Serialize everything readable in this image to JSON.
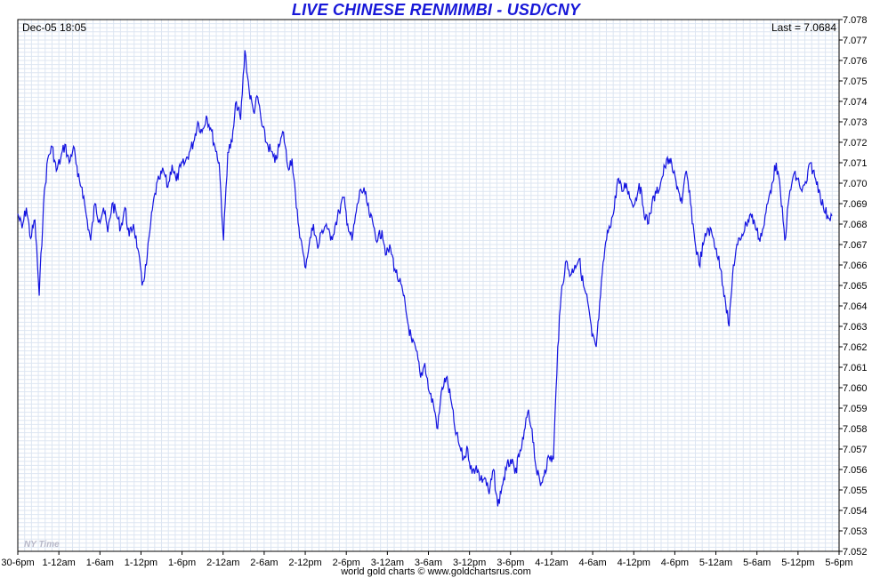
{
  "header": {
    "title": "LIVE CHINESE RENMIMBI - USD/CNY",
    "date_label": "Dec-05  18:05",
    "last_label": "Last = 7.0684"
  },
  "footer": {
    "timezone_label": "NY Time",
    "credit": "world gold charts © www.goldchartsrus.com"
  },
  "colors": {
    "line": "#1414e0",
    "grid": "#dde6f2",
    "title": "#1818d8"
  },
  "chart_data": {
    "type": "line",
    "title": "LIVE CHINESE RENMIMBI - USD/CNY",
    "xlabel": "",
    "ylabel": "",
    "ylim": [
      7.052,
      7.078
    ],
    "y_ticks": [
      "7.052",
      "7.053",
      "7.054",
      "7.055",
      "7.056",
      "7.057",
      "7.058",
      "7.059",
      "7.060",
      "7.061",
      "7.062",
      "7.063",
      "7.064",
      "7.065",
      "7.066",
      "7.067",
      "7.068",
      "7.069",
      "7.070",
      "7.071",
      "7.072",
      "7.073",
      "7.074",
      "7.075",
      "7.076",
      "7.077",
      "7.078"
    ],
    "x_ticks": [
      "30-6pm",
      "1-12am",
      "1-6am",
      "1-12pm",
      "1-6pm",
      "2-12am",
      "2-6am",
      "2-12pm",
      "2-6pm",
      "3-12am",
      "3-6am",
      "3-12pm",
      "3-6pm",
      "4-12am",
      "4-6am",
      "4-12pm",
      "4-6pm",
      "5-12am",
      "5-6am",
      "5-12pm",
      "5-6pm"
    ],
    "grid": true,
    "last_value": 7.0684,
    "series": [
      {
        "values": [
          7.0685,
          7.0678,
          7.0688,
          7.0673,
          7.0682,
          7.0645,
          7.069,
          7.0712,
          7.0718,
          7.0706,
          7.0712,
          7.0719,
          7.071,
          7.0718,
          7.0703,
          7.0698,
          7.0684,
          7.0672,
          7.069,
          7.0682,
          7.0688,
          7.0676,
          7.069,
          7.0685,
          7.0678,
          7.0688,
          7.0674,
          7.068,
          7.0668,
          7.065,
          7.066,
          7.068,
          7.0695,
          7.0702,
          7.0706,
          7.0698,
          7.0709,
          7.0701,
          7.0708,
          7.071,
          7.0715,
          7.072,
          7.073,
          7.0725,
          7.0733,
          7.0727,
          7.0718,
          7.071,
          7.0672,
          7.0715,
          7.072,
          7.074,
          7.0731,
          7.0765,
          7.0745,
          7.0735,
          7.0742,
          7.0728,
          7.072,
          7.0716,
          7.071,
          7.0718,
          7.0725,
          7.0708,
          7.0712,
          7.0688,
          7.0673,
          7.0659,
          7.067,
          7.068,
          7.0668,
          7.0677,
          7.068,
          7.0672,
          7.0679,
          7.0686,
          7.0693,
          7.068,
          7.0672,
          7.0686,
          7.0697,
          7.0695,
          7.0685,
          7.0679,
          7.0672,
          7.0677,
          7.0665,
          7.0668,
          7.0658,
          7.0652,
          7.0645,
          7.0632,
          7.0622,
          7.0618,
          7.0605,
          7.0612,
          7.0598,
          7.0592,
          7.058,
          7.06,
          7.0605,
          7.0595,
          7.058,
          7.0572,
          7.0565,
          7.057,
          7.0558,
          7.0562,
          7.0555,
          7.0556,
          7.0548,
          7.056,
          7.0542,
          7.0552,
          7.056,
          7.0565,
          7.0558,
          7.0566,
          7.0575,
          7.0588,
          7.058,
          7.056,
          7.0552,
          7.056,
          7.0566,
          7.0565,
          7.062,
          7.065,
          7.0662,
          7.0655,
          7.066,
          7.0663,
          7.065,
          7.0642,
          7.0625,
          7.062,
          7.0645,
          7.0668,
          7.0679,
          7.0685,
          7.0702,
          7.0696,
          7.07,
          7.0692,
          7.069,
          7.07,
          7.0688,
          7.068,
          7.069,
          7.0695,
          7.07,
          7.0708,
          7.0712,
          7.0705,
          7.0698,
          7.069,
          7.0706,
          7.069,
          7.0672,
          7.066,
          7.067,
          7.0678,
          7.0675,
          7.0668,
          7.0658,
          7.0645,
          7.063,
          7.066,
          7.067,
          7.0675,
          7.068,
          7.0685,
          7.068,
          7.0673,
          7.0678,
          7.069,
          7.07,
          7.071,
          7.0695,
          7.0672,
          7.0693,
          7.0704,
          7.0702,
          7.0696,
          7.07,
          7.071,
          7.0703,
          7.0697,
          7.0688,
          7.0684,
          7.0684
        ]
      }
    ]
  }
}
